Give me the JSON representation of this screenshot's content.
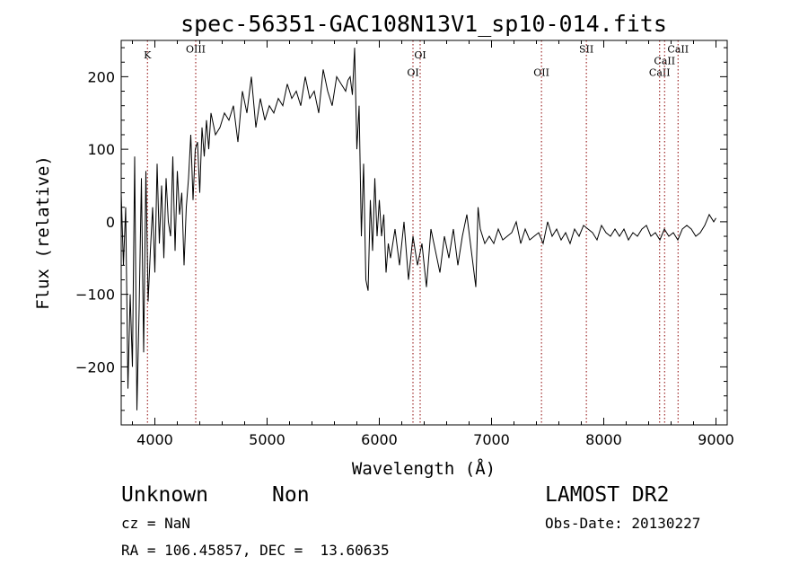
{
  "chart_data": {
    "type": "line",
    "title": "spec-56351-GAC108N13V1_sp10-014.fits",
    "xlabel": "Wavelength (Å)",
    "ylabel": "Flux (relative)",
    "xlim": [
      3700,
      9100
    ],
    "ylim": [
      -280,
      250
    ],
    "xticks": [
      4000,
      5000,
      6000,
      7000,
      8000,
      9000
    ],
    "yticks": [
      -200,
      -100,
      0,
      100,
      200
    ],
    "grid": false,
    "line_color": "#000000",
    "marker_color": "#8b0000",
    "spectral_lines": [
      {
        "label": "K",
        "wavelength": 3934,
        "label_y": 225
      },
      {
        "label": "OIII",
        "wavelength": 4364,
        "label_y": 233
      },
      {
        "label": "OI",
        "wavelength": 6300,
        "label_y": 201
      },
      {
        "label": "OI",
        "wavelength": 6364,
        "label_y": 225
      },
      {
        "label": "OII",
        "wavelength": 7445,
        "label_y": 201
      },
      {
        "label": "SII",
        "wavelength": 7845,
        "label_y": 233
      },
      {
        "label": "CaII",
        "wavelength": 8498,
        "label_y": 201
      },
      {
        "label": "CaII",
        "wavelength": 8542,
        "label_y": 217
      },
      {
        "label": "CaII",
        "wavelength": 8662,
        "label_y": 233
      }
    ],
    "series": [
      {
        "x": [
          3700,
          3720,
          3740,
          3760,
          3780,
          3800,
          3820,
          3840,
          3860,
          3880,
          3900,
          3920,
          3940,
          3960,
          3980,
          4000,
          4020,
          4040,
          4060,
          4080,
          4100,
          4120,
          4140,
          4160,
          4180,
          4200,
          4220,
          4240,
          4260,
          4280,
          4300,
          4320,
          4340,
          4360,
          4380,
          4400,
          4420,
          4440,
          4460,
          4480,
          4500,
          4540,
          4580,
          4620,
          4660,
          4700,
          4740,
          4780,
          4820,
          4860,
          4900,
          4940,
          4980,
          5020,
          5060,
          5100,
          5140,
          5180,
          5220,
          5260,
          5300,
          5340,
          5380,
          5420,
          5460,
          5500,
          5540,
          5580,
          5620,
          5660,
          5700,
          5720,
          5740,
          5760,
          5780,
          5800,
          5820,
          5840,
          5860,
          5880,
          5900,
          5920,
          5940,
          5960,
          5980,
          6000,
          6020,
          6040,
          6060,
          6080,
          6100,
          6140,
          6180,
          6220,
          6260,
          6300,
          6340,
          6380,
          6420,
          6460,
          6500,
          6540,
          6580,
          6620,
          6660,
          6700,
          6740,
          6780,
          6820,
          6860,
          6880,
          6900,
          6940,
          6980,
          7020,
          7060,
          7100,
          7140,
          7180,
          7220,
          7260,
          7300,
          7340,
          7380,
          7420,
          7460,
          7500,
          7540,
          7580,
          7620,
          7660,
          7700,
          7740,
          7780,
          7820,
          7860,
          7900,
          7940,
          7980,
          8020,
          8060,
          8100,
          8140,
          8180,
          8220,
          8260,
          8300,
          8340,
          8380,
          8420,
          8460,
          8500,
          8540,
          8580,
          8620,
          8660,
          8700,
          8740,
          8780,
          8820,
          8860,
          8900,
          8940,
          8980,
          9000
        ],
        "y": [
          40,
          -60,
          20,
          -230,
          -100,
          -200,
          90,
          -260,
          -120,
          60,
          -180,
          70,
          -110,
          -40,
          20,
          -70,
          80,
          -30,
          50,
          -50,
          60,
          0,
          -20,
          90,
          -40,
          70,
          10,
          40,
          -60,
          20,
          60,
          120,
          30,
          100,
          110,
          40,
          130,
          90,
          140,
          100,
          150,
          120,
          130,
          150,
          140,
          160,
          110,
          180,
          150,
          200,
          130,
          170,
          140,
          160,
          150,
          170,
          160,
          190,
          170,
          180,
          160,
          200,
          170,
          180,
          150,
          210,
          180,
          160,
          200,
          190,
          180,
          195,
          200,
          175,
          240,
          100,
          160,
          -20,
          80,
          -80,
          -95,
          30,
          -40,
          60,
          -20,
          30,
          -20,
          10,
          -70,
          -30,
          -50,
          -10,
          -60,
          0,
          -80,
          -20,
          -60,
          -30,
          -90,
          -10,
          -40,
          -70,
          -20,
          -50,
          -10,
          -60,
          -20,
          10,
          -40,
          -90,
          20,
          -10,
          -30,
          -20,
          -30,
          -10,
          -25,
          -20,
          -15,
          0,
          -30,
          -10,
          -25,
          -20,
          -15,
          -30,
          0,
          -20,
          -10,
          -25,
          -15,
          -30,
          -10,
          -20,
          -5,
          -10,
          -15,
          -25,
          -5,
          -15,
          -20,
          -10,
          -20,
          -10,
          -25,
          -15,
          -20,
          -10,
          -5,
          -20,
          -15,
          -25,
          -10,
          -20,
          -15,
          -25,
          -10,
          -5,
          -10,
          -20,
          -15,
          -5,
          10,
          0,
          5
        ]
      }
    ]
  },
  "info": {
    "class_label": "Unknown",
    "subclass_label": "Non",
    "survey_label": "LAMOST DR2",
    "cz_text": "cz = NaN",
    "obs_date_text": "Obs-Date: 20130227",
    "coords_text": "RA = 106.45857, DEC =  13.60635"
  }
}
